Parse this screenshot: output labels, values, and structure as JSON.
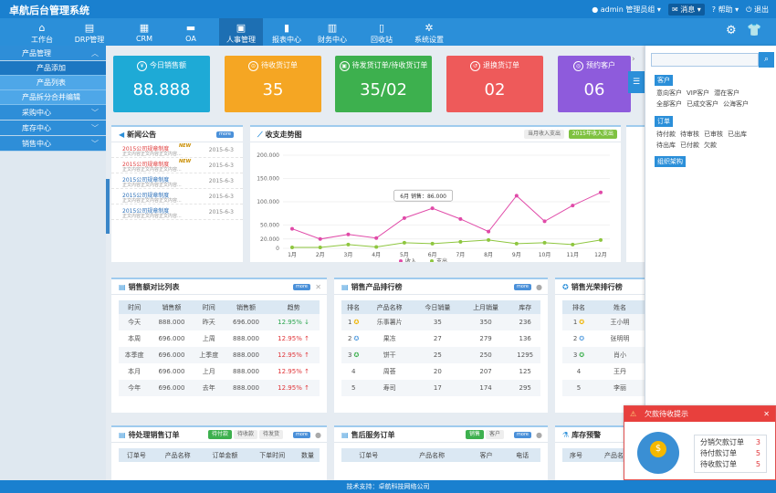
{
  "app": {
    "title": "卓航后台管理系统"
  },
  "topbar": {
    "user": "admin",
    "role": "管理员组",
    "messages": "消息",
    "help": "帮助",
    "logout": "退出"
  },
  "nav": [
    {
      "label": "工作台",
      "icon": "home-icon",
      "glyph": "⌂"
    },
    {
      "label": "DRP管理",
      "icon": "clipboard-icon",
      "glyph": "▤"
    },
    {
      "label": "CRM",
      "icon": "grid-icon",
      "glyph": "▦"
    },
    {
      "label": "OA",
      "icon": "folder-icon",
      "glyph": "▬"
    },
    {
      "label": "人事管理",
      "icon": "id-card-icon",
      "glyph": "▣"
    },
    {
      "label": "报表中心",
      "icon": "bar-chart-icon",
      "glyph": "▮"
    },
    {
      "label": "财务中心",
      "icon": "finance-icon",
      "glyph": "▥"
    },
    {
      "label": "回收站",
      "icon": "trash-icon",
      "glyph": "▯"
    },
    {
      "label": "系统设置",
      "icon": "settings-icon",
      "glyph": "✲"
    }
  ],
  "sidebar": {
    "group1": "产品管理",
    "items": [
      "产品添加",
      "产品列表",
      "产品拆分合并编辑"
    ],
    "group2": "采购中心",
    "group3": "库存中心",
    "group4": "销售中心"
  },
  "cards": [
    {
      "title": "今日销售额",
      "value": "88.888",
      "color": "#1eaad6",
      "icon": "¥"
    },
    {
      "title": "待收货订单",
      "value": "35",
      "color": "#f5a623",
      "icon": "⊙"
    },
    {
      "title": "待发货订单/待收货订单",
      "value": "35/02",
      "color": "#3db04e",
      "icon": "▣"
    },
    {
      "title": "退换货订单",
      "value": "02",
      "color": "#ee5a5a",
      "icon": "↺"
    },
    {
      "title": "预约客户",
      "value": "06",
      "color": "#8e5bdc",
      "icon": "◎"
    }
  ],
  "news": {
    "title": "新闻公告",
    "more": "more",
    "items": [
      {
        "title": "2015公司规章制度",
        "summary": "正文内容正文内容正文内容...",
        "date": "2015-6-3",
        "hot": true,
        "isnew": true
      },
      {
        "title": "2015公司规章制度",
        "summary": "正文内容正文内容正文内容...",
        "date": "2015-6-3",
        "hot": true,
        "isnew": true
      },
      {
        "title": "2015公司规章制度",
        "summary": "正文内容正文内容正文内容...",
        "date": "2015-6-3",
        "hot": false,
        "isnew": false
      },
      {
        "title": "2015公司规章制度",
        "summary": "正文内容正文内容正文内容...",
        "date": "2015-6-3",
        "hot": false,
        "isnew": false
      },
      {
        "title": "2015公司规章制度",
        "summary": "正文内容正文内容正文内容...",
        "date": "2015-6-3",
        "hot": false,
        "isnew": false
      }
    ],
    "new_badge": "NEW"
  },
  "trend": {
    "title": "收支走势图",
    "tab_month": "当月收入支出",
    "tab_year": "2015年收入支出",
    "tooltip": "6月 销售：86.000"
  },
  "chart_data": {
    "type": "line",
    "categories": [
      "1月",
      "2月",
      "3月",
      "4月",
      "5月",
      "6月",
      "7月",
      "8月",
      "9月",
      "10月",
      "11月",
      "12月"
    ],
    "series": [
      {
        "name": "收入",
        "color": "#e04aa8",
        "values": [
          42000,
          20000,
          30000,
          22000,
          65000,
          86000,
          63000,
          36000,
          113000,
          58000,
          92000,
          120000
        ]
      },
      {
        "name": "支出",
        "color": "#8ec63f",
        "values": [
          2000,
          2000,
          8000,
          3000,
          12000,
          10000,
          14000,
          18000,
          10000,
          12000,
          8000,
          18000
        ]
      }
    ],
    "yticks": [
      "0",
      "20.000",
      "50.000",
      "100.000",
      "150.000",
      "200.000"
    ],
    "ylim": [
      0,
      200000
    ],
    "legend": "bottom"
  },
  "sales_compare": {
    "title": "销售额对比列表",
    "more": "more",
    "headers": [
      "时间",
      "销售额",
      "时间",
      "销售额",
      "趋势"
    ],
    "rows": [
      [
        "今天",
        "888.000",
        "昨天",
        "696.000",
        "12.95%",
        "down"
      ],
      [
        "本周",
        "696.000",
        "上周",
        "888.000",
        "12.95%",
        "up"
      ],
      [
        "本季度",
        "696.000",
        "上季度",
        "888.000",
        "12.95%",
        "up"
      ],
      [
        "本月",
        "696.000",
        "上月",
        "888.000",
        "12.95%",
        "up"
      ],
      [
        "今年",
        "696.000",
        "去年",
        "888.000",
        "12.95%",
        "up"
      ]
    ]
  },
  "product_rank": {
    "title": "销售产品排行榜",
    "more": "more",
    "headers": [
      "排名",
      "产品名称",
      "今日销量",
      "上月销量",
      "库存"
    ],
    "rows": [
      [
        "1",
        "乐事薯片",
        "35",
        "350",
        "236"
      ],
      [
        "2",
        "果冻",
        "27",
        "279",
        "136"
      ],
      [
        "3",
        "饼干",
        "25",
        "250",
        "1295"
      ],
      [
        "4",
        "周荟",
        "20",
        "207",
        "125"
      ],
      [
        "5",
        "寿司",
        "17",
        "174",
        "295"
      ]
    ]
  },
  "honor_rank": {
    "title": "销售光荣排行榜",
    "more": "more",
    "headers": [
      "排名",
      "姓名"
    ],
    "rows": [
      [
        "1",
        "王小明"
      ],
      [
        "2",
        "张明明"
      ],
      [
        "3",
        "肖小"
      ],
      [
        "4",
        "王丹"
      ],
      [
        "5",
        "李丽"
      ]
    ]
  },
  "pending_orders": {
    "title": "待处理销售订单",
    "tabs": [
      "待付款",
      "待收款",
      "待发货"
    ],
    "more": "more",
    "headers": [
      "订单号",
      "产品名称",
      "订单金额",
      "下单时间",
      "数量"
    ]
  },
  "after_sales": {
    "title": "售后服务订单",
    "tabs": [
      "销售",
      "客户"
    ],
    "more": "more",
    "headers": [
      "订单号",
      "产品名称",
      "客户",
      "电话"
    ]
  },
  "stock_alert": {
    "title": "库存预警",
    "headers": [
      "序号",
      "产品名称"
    ]
  },
  "drawer": {
    "customer_tag": "客户",
    "customer_links": [
      "意向客户",
      "VIP客户",
      "潜在客户",
      "全部客户",
      "已成交客户",
      "公海客户"
    ],
    "order_tag": "订单",
    "order_links": [
      "待付款",
      "待审核",
      "已审核",
      "已出库",
      "待出库",
      "已付款",
      "欠款"
    ],
    "org_tag": "组织架构"
  },
  "toast": {
    "title": "欠款待收提示",
    "items": [
      {
        "label": "分销欠款订单",
        "value": "3"
      },
      {
        "label": "待付款订单",
        "value": "5"
      },
      {
        "label": "待收款订单",
        "value": "5"
      }
    ]
  },
  "footer": {
    "text": "技术支持：卓航科技网络公司"
  }
}
